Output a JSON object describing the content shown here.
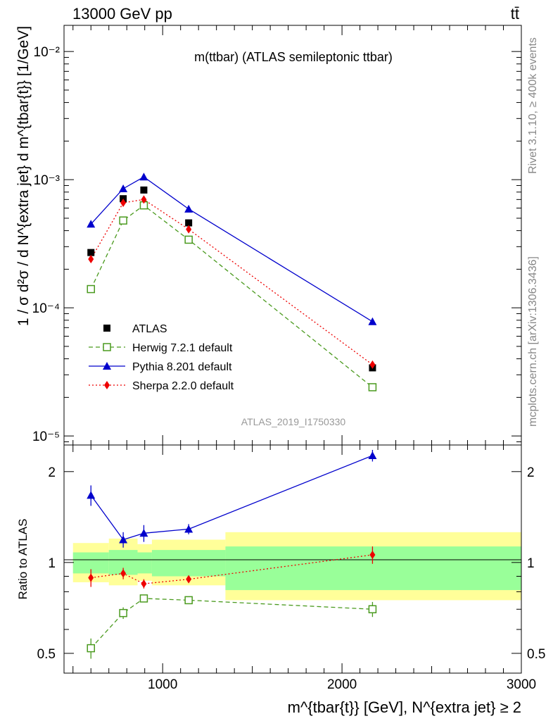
{
  "header": {
    "energy_label": "13000 GeV pp",
    "process_label": "tt̄"
  },
  "side_labels": {
    "rivet": "Rivet 3.1.10, ≥ 400k events",
    "mcplots": "mcplots.cern.ch [arXiv:1306.3436]"
  },
  "chart_data": [
    {
      "type": "scatter",
      "panel": "main",
      "title": "m(ttbar) (ATLAS semileptonic ttbar)",
      "watermark": "ATLAS_2019_I1750330",
      "ylabel": "1 / σ d²σ / d N^{extra jet} d m^{tbar{t}} [1/GeV]",
      "yscale": "log",
      "ylim": [
        8.5e-06,
        0.016
      ],
      "xlim": [
        450,
        3000
      ],
      "y_tick_labels": [
        "10⁻²",
        "10⁻³",
        "10⁻⁴",
        "10⁻⁵"
      ],
      "legend_position": "lower-left",
      "series": [
        {
          "name": "ATLAS",
          "color": "#000000",
          "marker": "filled-square",
          "x": [
            600,
            780,
            895,
            1145,
            2170
          ],
          "y": [
            0.00027,
            0.00071,
            0.00083,
            0.00046,
            3.4e-05
          ]
        },
        {
          "name": "Herwig 7.2.1 default",
          "color": "#4a9a1e",
          "marker": "open-square",
          "line": "dashed",
          "x": [
            600,
            780,
            895,
            1145,
            2170
          ],
          "y": [
            0.00014,
            0.00048,
            0.00063,
            0.00034,
            2.4e-05
          ]
        },
        {
          "name": "Pythia 8.201 default",
          "color": "#0000cc",
          "marker": "triangle",
          "line": "solid",
          "x": [
            600,
            780,
            895,
            1145,
            2170
          ],
          "y": [
            0.00045,
            0.00085,
            0.00105,
            0.00059,
            7.8e-05
          ]
        },
        {
          "name": "Sherpa 2.2.0 default",
          "color": "#ee0000",
          "marker": "diamond",
          "line": "dotted",
          "x": [
            600,
            780,
            895,
            1145,
            2170
          ],
          "y": [
            0.00024,
            0.00066,
            0.0007,
            0.00041,
            3.6e-05
          ]
        }
      ]
    },
    {
      "type": "scatter",
      "panel": "ratio",
      "ylabel": "Ratio to ATLAS",
      "xlabel": "m^{tbar{t}} [GeV], N^{extra jet} ≥ 2",
      "yscale": "log",
      "ylim": [
        0.43,
        2.45
      ],
      "xlim": [
        450,
        3000
      ],
      "x_ticks": [
        1000,
        2000,
        3000
      ],
      "x_tick_labels": [
        "1000",
        "2000",
        "3000"
      ],
      "y_ticks": [
        0.5,
        1,
        2
      ],
      "y_tick_labels": [
        "0.5",
        "1",
        "2"
      ],
      "bands": {
        "edges": [
          450,
          700,
          860,
          940,
          1350,
          3000
        ],
        "inner": [
          [
            0.92,
            1.08
          ],
          [
            0.91,
            1.1
          ],
          [
            0.92,
            1.08
          ],
          [
            0.9,
            1.1
          ],
          [
            0.81,
            1.13
          ]
        ],
        "outer": [
          [
            0.86,
            1.16
          ],
          [
            0.84,
            1.2
          ],
          [
            0.87,
            1.15
          ],
          [
            0.84,
            1.19
          ],
          [
            0.75,
            1.26
          ]
        ],
        "inner_color": "#99ff99",
        "outer_color": "#ffff99"
      },
      "series": [
        {
          "name": "Herwig 7.2.1 default",
          "color": "#4a9a1e",
          "x": [
            600,
            780,
            895,
            1145,
            2170
          ],
          "y": [
            0.52,
            0.68,
            0.76,
            0.75,
            0.7
          ],
          "err": [
            0.04,
            0.03,
            0.02,
            0.01,
            0.04
          ]
        },
        {
          "name": "Pythia 8.201 default",
          "color": "#0000cc",
          "x": [
            600,
            780,
            895,
            1145,
            2170
          ],
          "y": [
            1.67,
            1.19,
            1.25,
            1.29,
            2.26
          ],
          "err": [
            0.13,
            0.07,
            0.08,
            0.05,
            0.1
          ]
        },
        {
          "name": "Sherpa 2.2.0 default",
          "color": "#ee0000",
          "x": [
            600,
            780,
            895,
            1145,
            2170
          ],
          "y": [
            0.89,
            0.92,
            0.85,
            0.88,
            1.06
          ],
          "err": [
            0.06,
            0.04,
            0.03,
            0.02,
            0.07
          ]
        }
      ]
    }
  ]
}
